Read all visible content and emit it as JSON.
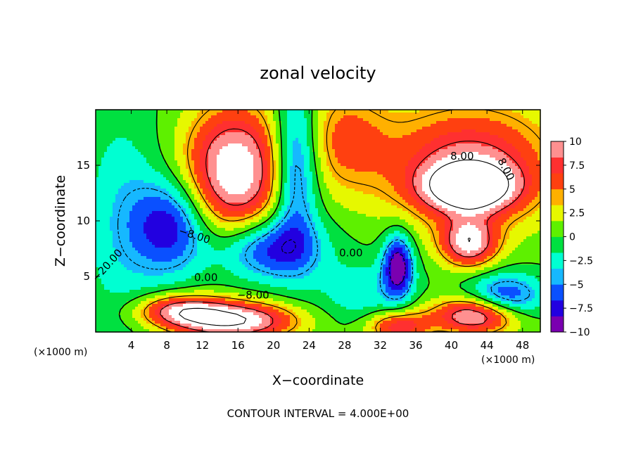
{
  "chart_data": {
    "type": "heatmap",
    "title": "zonal velocity",
    "xlabel": "X−coordinate",
    "ylabel": "Z−coordinate",
    "x_unit_note_left": "(×1000 m)",
    "x_unit_note_right": "(×1000 m)",
    "footer": "CONTOUR INTERVAL = 4.000E+00",
    "xlim": [
      0,
      50
    ],
    "ylim": [
      0,
      20
    ],
    "x_ticks": [
      4,
      8,
      12,
      16,
      20,
      24,
      28,
      32,
      36,
      40,
      44,
      48
    ],
    "y_ticks": [
      5,
      10,
      15
    ],
    "colorbar": {
      "min": -10,
      "max": 10,
      "tick_values": [
        10,
        7.5,
        5,
        2.5,
        0,
        -2.5,
        -5,
        -7.5,
        -10
      ],
      "tick_labels": [
        "10",
        "7.5",
        "5",
        "2.5",
        "0",
        "−2.5",
        "−5",
        "−7.5",
        "−10"
      ],
      "colors": [
        "#7a00b0",
        "#2200e0",
        "#0a50ff",
        "#16b8ff",
        "#00ffd2",
        "#00e040",
        "#5ef000",
        "#e6f800",
        "#ffb000",
        "#ff4010",
        "#ff3030",
        "#ff9090"
      ]
    },
    "contour_labels": [
      {
        "text": "−8.00",
        "x": 11,
        "y": 8.4,
        "angle": 18
      },
      {
        "text": "−20.00",
        "x": 1.6,
        "y": 5.8,
        "angle": -48
      },
      {
        "text": "0.00",
        "x": 12.4,
        "y": 4.6,
        "angle": 0
      },
      {
        "text": "−8.00",
        "x": 17.7,
        "y": 3.0,
        "angle": 0
      },
      {
        "text": "0.00",
        "x": 28.7,
        "y": 6.8,
        "angle": 0
      },
      {
        "text": "8.00",
        "x": 41.2,
        "y": 15.5,
        "angle": 0
      },
      {
        "text": "8.00",
        "x": 45.8,
        "y": 14.5,
        "angle": 62
      }
    ],
    "features": [
      {
        "x": 15.6,
        "y": 14.5,
        "value": 12,
        "sx": 4.0,
        "sy": 4.2
      },
      {
        "x": 8.5,
        "y": 9.5,
        "value": -8,
        "sx": 3.0,
        "sy": 3.0
      },
      {
        "x": 19.5,
        "y": 7.5,
        "value": -8,
        "sx": 4.0,
        "sy": 2.0
      },
      {
        "x": 22.5,
        "y": 15.0,
        "value": -8,
        "sx": 1.8,
        "sy": 5.0
      },
      {
        "x": 3.0,
        "y": 10.0,
        "value": -3,
        "sx": 3.0,
        "sy": 7.0
      },
      {
        "x": 15.5,
        "y": 1.0,
        "value": 12,
        "sx": 5.0,
        "sy": 1.2
      },
      {
        "x": 9.5,
        "y": 2.0,
        "value": 8,
        "sx": 3.5,
        "sy": 1.0
      },
      {
        "x": 28.0,
        "y": 17.5,
        "value": 5,
        "sx": 3.5,
        "sy": 3.5
      },
      {
        "x": 42.0,
        "y": 15.0,
        "value": 9,
        "sx": 7.0,
        "sy": 4.0
      },
      {
        "x": 42.0,
        "y": 13.0,
        "value": 12,
        "sx": 3.5,
        "sy": 1.5
      },
      {
        "x": 42.0,
        "y": 8.0,
        "value": 10,
        "sx": 2.2,
        "sy": 1.5
      },
      {
        "x": 34.0,
        "y": 6.0,
        "value": -10,
        "sx": 1.2,
        "sy": 2.0
      },
      {
        "x": 30.0,
        "y": 3.5,
        "value": -3,
        "sx": 3.5,
        "sy": 2.0
      },
      {
        "x": 43.0,
        "y": 1.5,
        "value": 12,
        "sx": 3.5,
        "sy": 1.2
      },
      {
        "x": 46.0,
        "y": 3.0,
        "value": -8,
        "sx": 3.0,
        "sy": 1.5
      },
      {
        "x": 34.0,
        "y": 0.5,
        "value": 8,
        "sx": 2.5,
        "sy": 1.0
      }
    ],
    "grid": false,
    "legend_position": "right"
  }
}
